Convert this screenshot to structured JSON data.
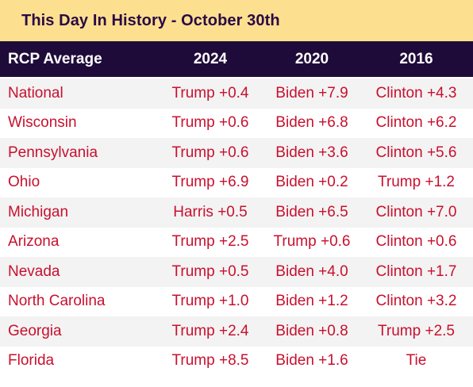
{
  "title": "This Day In History - October 30th",
  "columns": [
    "RCP Average",
    "2024",
    "2020",
    "2016"
  ],
  "rows": [
    {
      "state": "National",
      "y2024": "Trump +0.4",
      "y2020": "Biden +7.9",
      "y2016": "Clinton +4.3"
    },
    {
      "state": "Wisconsin",
      "y2024": "Trump +0.6",
      "y2020": "Biden +6.8",
      "y2016": "Clinton +6.2"
    },
    {
      "state": "Pennsylvania",
      "y2024": "Trump +0.6",
      "y2020": "Biden +3.6",
      "y2016": "Clinton +5.6"
    },
    {
      "state": "Ohio",
      "y2024": "Trump +6.9",
      "y2020": "Biden +0.2",
      "y2016": "Trump +1.2"
    },
    {
      "state": "Michigan",
      "y2024": "Harris +0.5",
      "y2020": "Biden +6.5",
      "y2016": "Clinton +7.0"
    },
    {
      "state": "Arizona",
      "y2024": "Trump +2.5",
      "y2020": "Trump +0.6",
      "y2016": "Clinton +0.6"
    },
    {
      "state": "Nevada",
      "y2024": "Trump +0.5",
      "y2020": "Biden +4.0",
      "y2016": "Clinton +1.7"
    },
    {
      "state": "North Carolina",
      "y2024": "Trump +1.0",
      "y2020": "Biden +1.2",
      "y2016": "Clinton +3.2"
    },
    {
      "state": "Georgia",
      "y2024": "Trump +2.4",
      "y2020": "Biden +0.8",
      "y2016": "Trump +2.5"
    },
    {
      "state": "Florida",
      "y2024": "Trump +8.5",
      "y2020": "Biden +1.6",
      "y2016": "Tie"
    }
  ],
  "colors": {
    "title_bg": "#fde08f",
    "title_text": "#2a0a45",
    "header_bg": "#1f0b3a",
    "header_text": "#ffffff",
    "row_alt_bg": "#f3f3f3",
    "value_text": "#c8102e"
  }
}
